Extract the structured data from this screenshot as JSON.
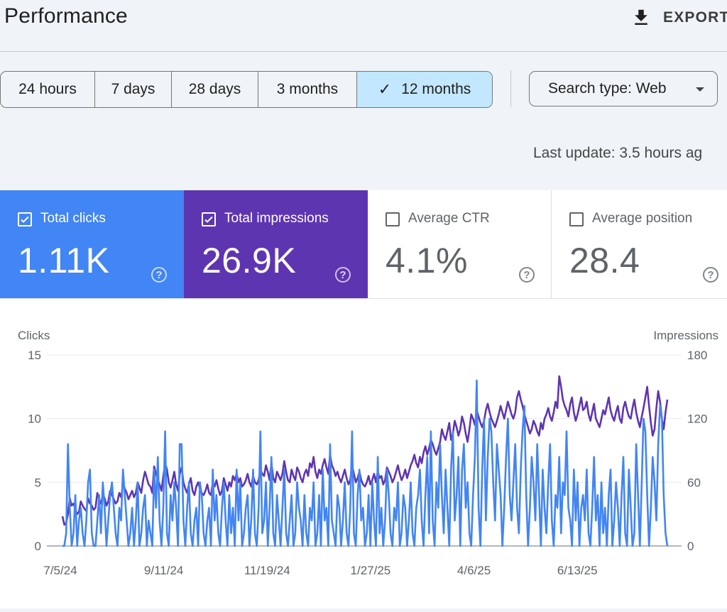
{
  "header": {
    "title": "Performance",
    "export_label": "EXPORT",
    "export_icon": "download-icon"
  },
  "date_ranges": [
    {
      "label": "24 hours",
      "selected": false
    },
    {
      "label": "7 days",
      "selected": false
    },
    {
      "label": "28 days",
      "selected": false
    },
    {
      "label": "3 months",
      "selected": false
    },
    {
      "label": "12 months",
      "selected": true
    }
  ],
  "search_type": {
    "label": "Search type: Web"
  },
  "last_update": "Last update: 3.5 hours ag",
  "metrics": [
    {
      "label": "Total clicks",
      "value": "1.11K",
      "checked": true,
      "color": "#4285f4"
    },
    {
      "label": "Total impressions",
      "value": "26.9K",
      "checked": true,
      "color": "#5e35b1"
    },
    {
      "label": "Average CTR",
      "value": "4.1%",
      "checked": false
    },
    {
      "label": "Average position",
      "value": "28.4",
      "checked": false
    }
  ],
  "chart_data": {
    "type": "line",
    "left_axis_title": "Clicks",
    "right_axis_title": "Impressions",
    "left_ylim": [
      0,
      15
    ],
    "right_ylim": [
      0,
      180
    ],
    "left_ticks": [
      "0",
      "5",
      "10",
      "15"
    ],
    "right_ticks": [
      "0",
      "60",
      "120",
      "180"
    ],
    "x_tick_labels": [
      "7/5/24",
      "9/11/24",
      "11/19/24",
      "1/27/25",
      "4/6/25",
      "6/13/25"
    ],
    "grid": true,
    "series": [
      {
        "name": "Clicks",
        "axis": "left",
        "color": "#4285f4",
        "values": [
          0,
          0,
          1,
          8,
          3,
          0,
          1,
          4,
          0,
          2,
          3,
          1,
          0,
          2,
          5,
          6,
          1,
          0,
          0,
          2,
          4,
          1,
          5,
          3,
          0,
          2,
          4,
          5,
          3,
          1,
          0,
          3,
          2,
          6,
          4,
          2,
          0,
          1,
          3,
          0,
          2,
          5,
          0,
          1,
          3,
          4,
          0,
          2,
          1,
          0,
          6,
          3,
          7,
          2,
          0,
          3,
          9,
          1,
          0,
          4,
          2,
          5,
          3,
          0,
          8,
          8,
          2,
          0,
          3,
          5,
          1,
          0,
          2,
          3,
          0,
          5,
          4,
          1,
          0,
          2,
          3,
          0,
          6,
          2,
          4,
          1,
          0,
          3,
          5,
          2,
          0,
          4,
          1,
          3,
          0,
          6,
          2,
          5,
          0,
          1,
          3,
          4,
          0,
          2,
          6,
          1,
          0,
          3,
          9,
          1,
          2,
          5,
          0,
          3,
          7,
          1,
          0,
          4,
          2,
          0,
          3,
          6,
          1,
          0,
          2,
          4,
          0,
          1,
          5,
          3,
          2,
          0,
          4,
          1,
          0,
          3,
          2,
          5,
          0,
          1,
          4,
          0,
          6,
          2,
          3,
          0,
          8,
          2,
          1,
          0,
          4,
          3,
          0,
          2,
          5,
          1,
          0,
          3,
          9,
          1,
          0,
          4,
          6,
          2,
          3,
          0,
          1,
          4,
          0,
          5,
          2,
          0,
          7,
          1,
          3,
          0,
          2,
          6,
          4,
          1,
          0,
          3,
          2,
          5,
          0,
          1,
          4,
          3,
          0,
          2,
          5,
          1,
          0,
          3,
          4,
          6,
          2,
          0,
          4,
          7,
          1,
          9,
          2,
          0,
          5,
          3,
          8,
          4,
          1,
          6,
          3,
          0,
          6,
          9,
          2,
          4,
          7,
          0,
          6,
          8,
          3,
          5,
          1,
          0,
          4,
          7,
          13,
          3,
          0,
          6,
          10,
          2,
          7,
          10,
          9,
          5,
          2,
          8,
          6,
          4,
          0,
          3,
          7,
          10,
          4,
          2,
          5,
          8,
          3,
          1,
          6,
          9,
          11,
          4,
          0,
          3,
          7,
          5,
          2,
          8,
          4,
          0,
          6,
          3,
          1,
          5,
          8,
          2,
          0,
          4,
          3,
          7,
          1,
          5,
          4,
          9,
          3,
          2,
          0,
          6,
          2,
          5,
          0,
          3,
          4,
          2,
          6,
          1,
          0,
          3,
          7,
          2,
          4,
          0,
          5,
          1,
          3,
          0,
          4,
          6,
          0,
          2,
          5,
          3,
          0,
          4,
          7,
          1,
          0,
          6,
          3,
          0,
          1,
          8,
          4,
          0,
          5,
          10,
          9,
          4,
          0,
          3,
          7,
          5,
          2,
          8,
          11,
          10,
          4,
          1,
          0
        ]
      },
      {
        "name": "Impressions",
        "axis": "right",
        "color": "#5e35b1",
        "values": [
          28,
          20,
          22,
          30,
          45,
          38,
          40,
          35,
          30,
          32,
          42,
          38,
          35,
          33,
          45,
          40,
          38,
          34,
          36,
          50,
          44,
          40,
          48,
          45,
          38,
          42,
          52,
          48,
          44,
          40,
          42,
          50,
          46,
          58,
          54,
          50,
          44,
          48,
          52,
          46,
          50,
          60,
          55,
          50,
          62,
          70,
          64,
          58,
          56,
          50,
          75,
          68,
          62,
          58,
          52,
          66,
          78,
          72,
          60,
          55,
          62,
          70,
          58,
          52,
          68,
          74,
          60,
          54,
          50,
          58,
          64,
          52,
          48,
          56,
          60,
          54,
          50,
          48,
          52,
          58,
          50,
          48,
          60,
          56,
          62,
          54,
          48,
          52,
          64,
          58,
          52,
          60,
          56,
          66,
          62,
          68,
          60,
          64,
          56,
          58,
          62,
          68,
          60,
          56,
          66,
          60,
          58,
          62,
          72,
          68,
          66,
          76,
          70,
          62,
          78,
          64,
          60,
          70,
          66,
          62,
          68,
          80,
          70,
          62,
          60,
          72,
          66,
          62,
          74,
          70,
          64,
          60,
          68,
          72,
          66,
          78,
          74,
          84,
          70,
          64,
          72,
          68,
          76,
          82,
          74,
          68,
          86,
          76,
          72,
          66,
          70,
          64,
          60,
          66,
          72,
          64,
          58,
          62,
          76,
          68,
          60,
          64,
          70,
          62,
          58,
          56,
          60,
          66,
          58,
          62,
          68,
          60,
          70,
          64,
          66,
          58,
          62,
          74,
          70,
          66,
          60,
          64,
          70,
          76,
          68,
          62,
          66,
          72,
          64,
          70,
          76,
          80,
          86,
          78,
          74,
          84,
          78,
          88,
          94,
          86,
          92,
          100,
          96,
          90,
          86,
          92,
          98,
          110,
          104,
          100,
          108,
          116,
          100,
          106,
          118,
          112,
          104,
          110,
          122,
          116,
          106,
          98,
          110,
          124,
          120,
          114,
          128,
          122,
          116,
          112,
          118,
          128,
          134,
          126,
          120,
          116,
          112,
          118,
          124,
          132,
          126,
          120,
          128,
          136,
          130,
          124,
          120,
          126,
          140,
          146,
          138,
          132,
          124,
          118,
          112,
          106,
          110,
          118,
          114,
          108,
          104,
          116,
          110,
          120,
          124,
          130,
          122,
          118,
          126,
          136,
          130,
          160,
          150,
          138,
          132,
          128,
          122,
          134,
          140,
          126,
          118,
          124,
          132,
          140,
          128,
          130,
          136,
          124,
          118,
          126,
          134,
          120,
          116,
          112,
          120,
          128,
          124,
          132,
          140,
          128,
          122,
          118,
          126,
          132,
          120,
          116,
          130,
          136,
          128,
          122,
          120,
          130,
          138,
          126,
          118,
          112,
          122,
          130,
          140,
          150,
          132,
          116,
          104,
          110,
          130,
          146,
          136,
          120,
          110,
          126,
          138
        ]
      }
    ]
  }
}
